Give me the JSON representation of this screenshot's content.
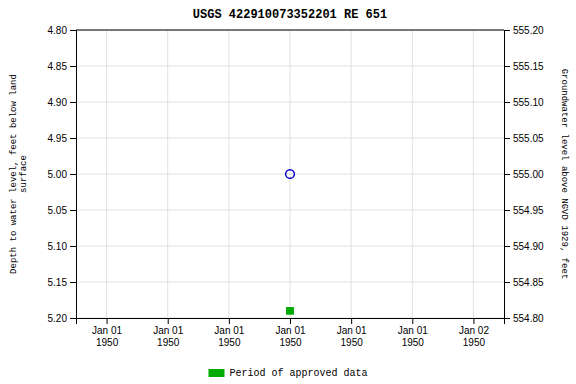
{
  "chart_data": {
    "type": "scatter",
    "title": "USGS 422910073352201 RE 651",
    "ylabel": "Depth to water level, feet below land\nsurface",
    "y2label": "Groundwater level above NGVD 1929, feet",
    "categories": [
      "Jan 01\n1950",
      "Jan 01\n1950",
      "Jan 01\n1950",
      "Jan 01\n1950",
      "Jan 01\n1950",
      "Jan 01\n1950",
      "Jan 02\n1950"
    ],
    "series": [
      {
        "color": "#0000cc",
        "marker": "circle-open",
        "values": [
          null,
          null,
          null,
          5.0,
          null,
          null,
          null
        ]
      },
      {
        "name": "Period of approved data",
        "color": "#00aa00",
        "marker": "square",
        "values": [
          null,
          null,
          null,
          5.19,
          null,
          null,
          null
        ]
      }
    ],
    "ylim": [
      5.2,
      4.8
    ],
    "yticks": [
      {
        "value": 4.8,
        "label": "4.80"
      },
      4.85,
      {
        "value": 4.9,
        "label": "4.90"
      },
      4.95,
      {
        "value": 5.0,
        "label": "5.00"
      },
      5.05,
      {
        "value": 5.1,
        "label": "5.10"
      },
      5.15,
      {
        "value": 5.2,
        "label": "5.20"
      }
    ],
    "y2lim": [
      554.8,
      555.2
    ],
    "y2ticks": [
      {
        "value": 555.2,
        "label": "555.20"
      },
      555.15,
      {
        "value": 555.1,
        "label": "555.10"
      },
      555.05,
      {
        "value": 555.0,
        "label": "555.00"
      },
      554.95,
      {
        "value": 554.9,
        "label": "554.90"
      },
      554.85,
      {
        "value": 554.8,
        "label": "554.80"
      }
    ],
    "grid": true,
    "legend": "bottom"
  }
}
